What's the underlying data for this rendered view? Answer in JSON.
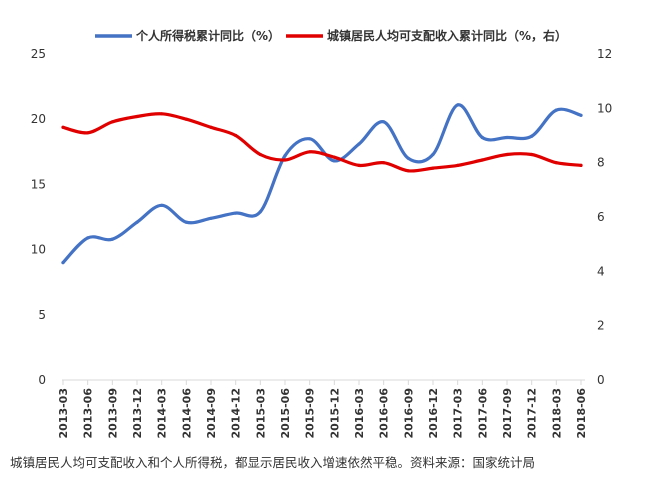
{
  "chart_data": {
    "type": "line",
    "title": "",
    "categories": [
      "2013-03",
      "2013-06",
      "2013-09",
      "2013-12",
      "2014-03",
      "2014-06",
      "2014-09",
      "2014-12",
      "2015-03",
      "2015-06",
      "2015-09",
      "2015-12",
      "2016-03",
      "2016-06",
      "2016-09",
      "2016-12",
      "2017-03",
      "2017-06",
      "2017-09",
      "2017-12",
      "2018-03",
      "2018-06"
    ],
    "series": [
      {
        "name": "个人所得税累计同比（%）",
        "axis": "left",
        "color": "#4472C4",
        "values": [
          9.0,
          10.9,
          10.8,
          12.1,
          13.4,
          12.1,
          12.4,
          12.8,
          12.9,
          17.2,
          18.5,
          16.8,
          18.1,
          19.8,
          17.0,
          17.3,
          21.1,
          18.6,
          18.6,
          18.7,
          20.7,
          20.3
        ]
      },
      {
        "name": "城镇居民人均可支配收入累计同比（%，右）",
        "axis": "right",
        "color": "#E00000",
        "values": [
          9.3,
          9.1,
          9.5,
          9.7,
          9.8,
          9.6,
          9.3,
          9.0,
          8.3,
          8.1,
          8.4,
          8.2,
          7.9,
          8.0,
          7.7,
          7.8,
          7.9,
          8.1,
          8.3,
          8.3,
          8.0,
          7.9
        ]
      }
    ],
    "y_left": {
      "min": 0,
      "max": 25,
      "ticks": [
        "0",
        "5",
        "10",
        "15",
        "20",
        "25"
      ]
    },
    "y_right": {
      "min": 0,
      "max": 12,
      "ticks": [
        "0",
        "2",
        "4",
        "6",
        "8",
        "10",
        "12"
      ]
    },
    "grid": false,
    "legend_position": "top"
  },
  "caption": "城镇居民人均可支配收入和个人所得税，都显示居民收入增速依然平稳。资料来源：国家统计局"
}
